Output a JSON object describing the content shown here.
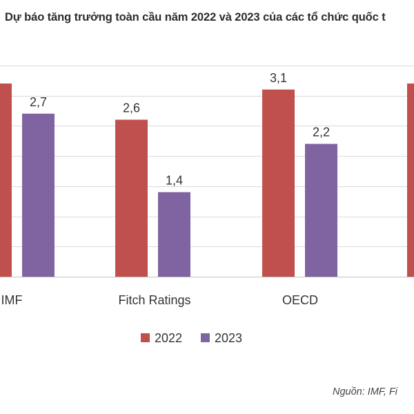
{
  "title": "Dự báo tăng trưởng toàn cầu năm 2022 và 2023 của các tổ chức quốc t",
  "source": "Nguồn: IMF, Fi",
  "colors": {
    "series_2022": "#c0504d",
    "series_2023": "#8064a2",
    "grid": "#d9d9d9",
    "text": "#333333"
  },
  "chart_data": {
    "type": "bar",
    "categories": [
      "IMF",
      "Fitch Ratings",
      "OECD",
      ""
    ],
    "series": [
      {
        "name": "2022",
        "values": [
          3.2,
          2.6,
          3.1,
          3.2
        ],
        "labels": [
          "",
          "2,6",
          "3,1",
          ""
        ]
      },
      {
        "name": "2023",
        "values": [
          2.7,
          1.4,
          2.2,
          null
        ],
        "labels": [
          "2,7",
          "1,4",
          "2,2",
          ""
        ]
      }
    ],
    "ylim": [
      0,
      3.5
    ],
    "grid": true,
    "legend_position": "bottom"
  }
}
